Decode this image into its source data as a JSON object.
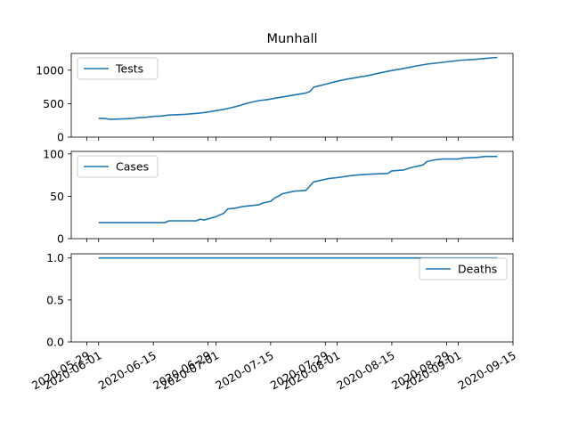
{
  "chart_data": {
    "type": "line",
    "title": "Munhall",
    "x_ticks": [
      "2020-05-29",
      "2020-06-01",
      "2020-06-15",
      "2020-06-29",
      "2020-07-01",
      "2020-07-15",
      "2020-07-29",
      "2020-08-01",
      "2020-08-15",
      "2020-08-29",
      "2020-09-01",
      "2020-09-15"
    ],
    "panels": [
      {
        "legend": "Tests",
        "legend_position": "upper left",
        "color": "#1f77b4",
        "ylim": [
          0,
          1250
        ],
        "yticks": [
          0,
          500,
          1000
        ],
        "points": [
          [
            "2020-06-01",
            280
          ],
          [
            "2020-06-02",
            280
          ],
          [
            "2020-06-03",
            275
          ],
          [
            "2020-06-04",
            265
          ],
          [
            "2020-06-05",
            268
          ],
          [
            "2020-06-06",
            270
          ],
          [
            "2020-06-08",
            275
          ],
          [
            "2020-06-10",
            280
          ],
          [
            "2020-06-11",
            290
          ],
          [
            "2020-06-13",
            295
          ],
          [
            "2020-06-15",
            310
          ],
          [
            "2020-06-17",
            315
          ],
          [
            "2020-06-19",
            330
          ],
          [
            "2020-06-21",
            335
          ],
          [
            "2020-06-23",
            340
          ],
          [
            "2020-06-25",
            350
          ],
          [
            "2020-06-27",
            360
          ],
          [
            "2020-06-29",
            375
          ],
          [
            "2020-07-01",
            395
          ],
          [
            "2020-07-03",
            415
          ],
          [
            "2020-07-05",
            440
          ],
          [
            "2020-07-07",
            470
          ],
          [
            "2020-07-08",
            490
          ],
          [
            "2020-07-10",
            520
          ],
          [
            "2020-07-12",
            545
          ],
          [
            "2020-07-14",
            560
          ],
          [
            "2020-07-16",
            580
          ],
          [
            "2020-07-18",
            600
          ],
          [
            "2020-07-20",
            620
          ],
          [
            "2020-07-22",
            640
          ],
          [
            "2020-07-24",
            660
          ],
          [
            "2020-07-25",
            680
          ],
          [
            "2020-07-26",
            745
          ],
          [
            "2020-07-27",
            760
          ],
          [
            "2020-07-29",
            790
          ],
          [
            "2020-07-31",
            820
          ],
          [
            "2020-08-03",
            860
          ],
          [
            "2020-08-06",
            890
          ],
          [
            "2020-08-09",
            920
          ],
          [
            "2020-08-12",
            960
          ],
          [
            "2020-08-15",
            995
          ],
          [
            "2020-08-18",
            1025
          ],
          [
            "2020-08-21",
            1060
          ],
          [
            "2020-08-24",
            1090
          ],
          [
            "2020-08-27",
            1110
          ],
          [
            "2020-08-30",
            1130
          ],
          [
            "2020-09-02",
            1150
          ],
          [
            "2020-09-05",
            1160
          ],
          [
            "2020-09-08",
            1175
          ],
          [
            "2020-09-11",
            1190
          ]
        ]
      },
      {
        "legend": "Cases",
        "legend_position": "upper left",
        "color": "#1f77b4",
        "ylim": [
          0,
          103
        ],
        "yticks": [
          0,
          50,
          100
        ],
        "points": [
          [
            "2020-06-01",
            19
          ],
          [
            "2020-06-18",
            19
          ],
          [
            "2020-06-19",
            21
          ],
          [
            "2020-06-26",
            21
          ],
          [
            "2020-06-27",
            23
          ],
          [
            "2020-06-28",
            22
          ],
          [
            "2020-07-01",
            26
          ],
          [
            "2020-07-03",
            30
          ],
          [
            "2020-07-04",
            35
          ],
          [
            "2020-07-06",
            36
          ],
          [
            "2020-07-08",
            38
          ],
          [
            "2020-07-10",
            39
          ],
          [
            "2020-07-12",
            40
          ],
          [
            "2020-07-13",
            42
          ],
          [
            "2020-07-15",
            44
          ],
          [
            "2020-07-16",
            48
          ],
          [
            "2020-07-17",
            50
          ],
          [
            "2020-07-18",
            53
          ],
          [
            "2020-07-20",
            55
          ],
          [
            "2020-07-21",
            56
          ],
          [
            "2020-07-24",
            57
          ],
          [
            "2020-07-25",
            62
          ],
          [
            "2020-07-26",
            67
          ],
          [
            "2020-07-28",
            69
          ],
          [
            "2020-07-30",
            71
          ],
          [
            "2020-08-01",
            72
          ],
          [
            "2020-08-04",
            74
          ],
          [
            "2020-08-06",
            75
          ],
          [
            "2020-08-09",
            76
          ],
          [
            "2020-08-14",
            77
          ],
          [
            "2020-08-15",
            80
          ],
          [
            "2020-08-18",
            81
          ],
          [
            "2020-08-20",
            84
          ],
          [
            "2020-08-23",
            87
          ],
          [
            "2020-08-24",
            91
          ],
          [
            "2020-08-26",
            93
          ],
          [
            "2020-08-28",
            94
          ],
          [
            "2020-09-01",
            94
          ],
          [
            "2020-09-02",
            95
          ],
          [
            "2020-09-06",
            96
          ],
          [
            "2020-09-08",
            97
          ],
          [
            "2020-09-11",
            97
          ]
        ]
      },
      {
        "legend": "Deaths",
        "legend_position": "upper right",
        "color": "#1f77b4",
        "ylim": [
          0,
          1.05
        ],
        "yticks": [
          0,
          0.5,
          1
        ],
        "ytick_labels": [
          "0.0",
          "0.5",
          "1.0"
        ],
        "points": [
          [
            "2020-06-01",
            1
          ],
          [
            "2020-09-11",
            1
          ]
        ]
      }
    ]
  }
}
